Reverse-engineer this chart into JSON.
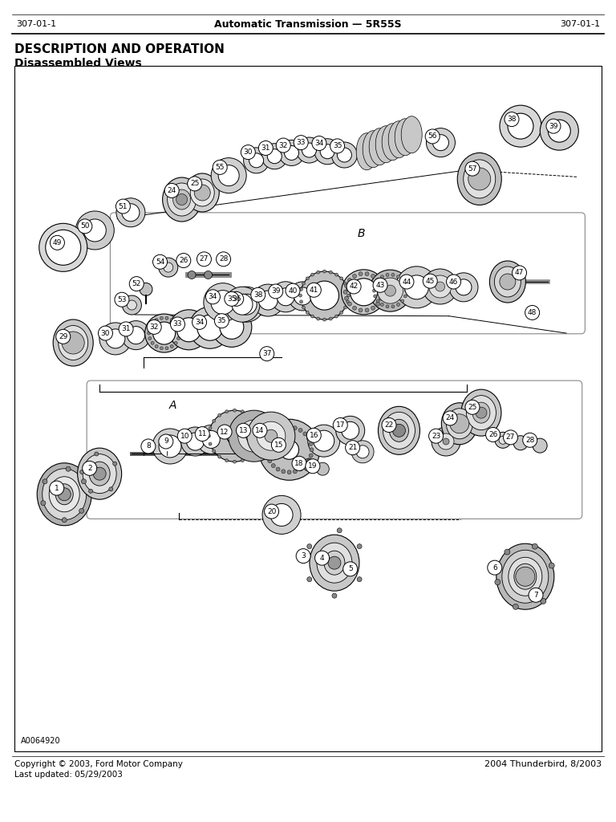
{
  "header_left": "307-01-1",
  "header_center": "Automatic Transmission — 5R55S",
  "header_right": "307-01-1",
  "title1": "DESCRIPTION AND OPERATION",
  "title2": "Disassembled Views",
  "footer_left": "Copyright © 2003, Ford Motor Company\nLast updated: 05/29/2003",
  "footer_right": "2004 Thunderbird, 8/2003",
  "diagram_label": "A0064920",
  "bg_color": "#ffffff"
}
